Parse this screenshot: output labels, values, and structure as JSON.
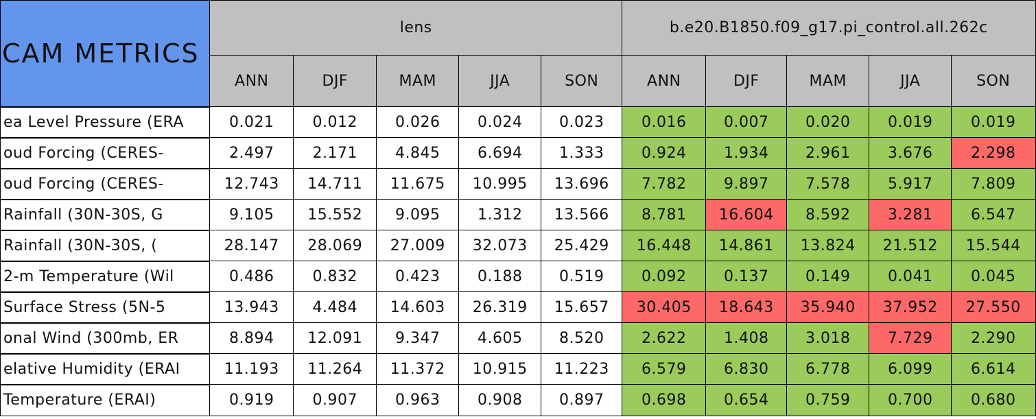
{
  "header": {
    "title": "CAM METRICS",
    "groups": [
      {
        "name": "lens",
        "seasons": [
          "ANN",
          "DJF",
          "MAM",
          "JJA",
          "SON"
        ]
      },
      {
        "name": "b.e20.B1850.f09_g17.pi_control.all.262c",
        "seasons": [
          "ANN",
          "DJF",
          "MAM",
          "JJA",
          "SON"
        ]
      }
    ]
  },
  "rows": [
    {
      "label": "ea Level Pressure (ERA",
      "values": [
        [
          "0.021",
          "0.012",
          "0.026",
          "0.024",
          "0.023"
        ],
        [
          "0.016",
          "0.007",
          "0.020",
          "0.019",
          "0.019"
        ]
      ],
      "colors": [
        [
          "#ffffff",
          "#ffffff",
          "#ffffff",
          "#ffffff",
          "#ffffff"
        ],
        [
          "#9bcb5b",
          "#9bcb5b",
          "#9bcb5b",
          "#9bcb5b",
          "#9bcb5b"
        ]
      ]
    },
    {
      "label": "oud Forcing (CERES-",
      "values": [
        [
          "2.497",
          "2.171",
          "4.845",
          "6.694",
          "1.333"
        ],
        [
          "0.924",
          "1.934",
          "2.961",
          "3.676",
          "2.298"
        ]
      ],
      "colors": [
        [
          "#ffffff",
          "#ffffff",
          "#ffffff",
          "#ffffff",
          "#ffffff"
        ],
        [
          "#9bcb5b",
          "#9bcb5b",
          "#9bcb5b",
          "#9bcb5b",
          "#fd6868"
        ]
      ]
    },
    {
      "label": "oud Forcing (CERES-",
      "values": [
        [
          "12.743",
          "14.711",
          "11.675",
          "10.995",
          "13.696"
        ],
        [
          "7.782",
          "9.897",
          "7.578",
          "5.917",
          "7.809"
        ]
      ],
      "colors": [
        [
          "#ffffff",
          "#ffffff",
          "#ffffff",
          "#ffffff",
          "#ffffff"
        ],
        [
          "#9bcb5b",
          "#9bcb5b",
          "#9bcb5b",
          "#9bcb5b",
          "#9bcb5b"
        ]
      ]
    },
    {
      "label": "Rainfall (30N-30S, G",
      "values": [
        [
          "9.105",
          "15.552",
          "9.095",
          "1.312",
          "13.566"
        ],
        [
          "8.781",
          "16.604",
          "8.592",
          "3.281",
          "6.547"
        ]
      ],
      "colors": [
        [
          "#ffffff",
          "#ffffff",
          "#ffffff",
          "#ffffff",
          "#ffffff"
        ],
        [
          "#9bcb5b",
          "#fd6868",
          "#9bcb5b",
          "#fd6868",
          "#9bcb5b"
        ]
      ]
    },
    {
      "label": "Rainfall (30N-30S, (",
      "values": [
        [
          "28.147",
          "28.069",
          "27.009",
          "32.073",
          "25.429"
        ],
        [
          "16.448",
          "14.861",
          "13.824",
          "21.512",
          "15.544"
        ]
      ],
      "colors": [
        [
          "#ffffff",
          "#ffffff",
          "#ffffff",
          "#ffffff",
          "#ffffff"
        ],
        [
          "#9bcb5b",
          "#9bcb5b",
          "#9bcb5b",
          "#9bcb5b",
          "#9bcb5b"
        ]
      ]
    },
    {
      "label": "2-m Temperature (Wil",
      "values": [
        [
          "0.486",
          "0.832",
          "0.423",
          "0.188",
          "0.519"
        ],
        [
          "0.092",
          "0.137",
          "0.149",
          "0.041",
          "0.045"
        ]
      ],
      "colors": [
        [
          "#ffffff",
          "#ffffff",
          "#ffffff",
          "#ffffff",
          "#ffffff"
        ],
        [
          "#9bcb5b",
          "#9bcb5b",
          "#9bcb5b",
          "#9bcb5b",
          "#9bcb5b"
        ]
      ]
    },
    {
      "label": "Surface Stress (5N-5",
      "values": [
        [
          "13.943",
          "4.484",
          "14.603",
          "26.319",
          "15.657"
        ],
        [
          "30.405",
          "18.643",
          "35.940",
          "37.952",
          "27.550"
        ]
      ],
      "colors": [
        [
          "#ffffff",
          "#ffffff",
          "#ffffff",
          "#ffffff",
          "#ffffff"
        ],
        [
          "#fd6868",
          "#fd6868",
          "#fd6868",
          "#fd6868",
          "#fd6868"
        ]
      ]
    },
    {
      "label": "onal Wind (300mb, ER",
      "values": [
        [
          "8.894",
          "12.091",
          "9.347",
          "4.605",
          "8.520"
        ],
        [
          "2.622",
          "1.408",
          "3.018",
          "7.729",
          "2.290"
        ]
      ],
      "colors": [
        [
          "#ffffff",
          "#ffffff",
          "#ffffff",
          "#ffffff",
          "#ffffff"
        ],
        [
          "#9bcb5b",
          "#9bcb5b",
          "#9bcb5b",
          "#fd6868",
          "#9bcb5b"
        ]
      ]
    },
    {
      "label": "elative Humidity (ERAI",
      "values": [
        [
          "11.193",
          "11.264",
          "11.372",
          "10.915",
          "11.223"
        ],
        [
          "6.579",
          "6.830",
          "6.778",
          "6.099",
          "6.614"
        ]
      ],
      "colors": [
        [
          "#ffffff",
          "#ffffff",
          "#ffffff",
          "#ffffff",
          "#ffffff"
        ],
        [
          "#9bcb5b",
          "#9bcb5b",
          "#9bcb5b",
          "#9bcb5b",
          "#9bcb5b"
        ]
      ]
    },
    {
      "label": "Temperature (ERAI)",
      "values": [
        [
          "0.919",
          "0.907",
          "0.963",
          "0.908",
          "0.897"
        ],
        [
          "0.698",
          "0.654",
          "0.759",
          "0.700",
          "0.680"
        ]
      ],
      "colors": [
        [
          "#ffffff",
          "#ffffff",
          "#ffffff",
          "#ffffff",
          "#ffffff"
        ],
        [
          "#9bcb5b",
          "#9bcb5b",
          "#9bcb5b",
          "#9bcb5b",
          "#9bcb5b"
        ]
      ]
    }
  ]
}
